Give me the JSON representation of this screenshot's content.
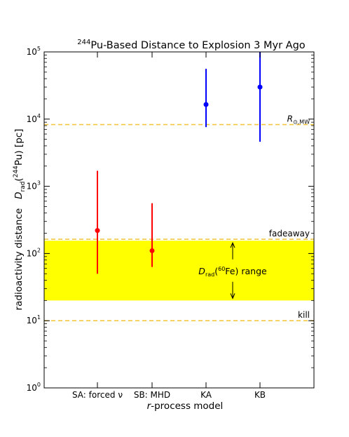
{
  "chart_data": {
    "type": "scatter",
    "title_prefix": "244",
    "title_main": "Pu-Based Distance to Explosion 3 Myr Ago",
    "xlabel_italic": "r",
    "xlabel_rest": "-process model",
    "ylabel_parts": {
      "prefix": "radioactivity distance   ",
      "sym": "D",
      "sub": "rad",
      "open": "(",
      "sup": "244",
      "close": "Pu) [pc]"
    },
    "yscale": "log",
    "ylim": [
      1,
      100000
    ],
    "y_tick_base": "10",
    "y_tick_exponents": [
      "0",
      "1",
      "2",
      "3",
      "4",
      "5"
    ],
    "categories": [
      "SA: forced ν",
      "SB: MHD",
      "KA",
      "KB"
    ],
    "points": [
      {
        "category": "SA: forced ν",
        "y": 220,
        "ymin": 50,
        "ymax": 1700,
        "color": "#ff0000"
      },
      {
        "category": "SB: MHD",
        "y": 110,
        "ymin": 63,
        "ymax": 560,
        "color": "#ff0000"
      },
      {
        "category": "KA",
        "y": 16500,
        "ymin": 7600,
        "ymax": 56000,
        "color": "#0000ff"
      },
      {
        "category": "KB",
        "y": 30000,
        "ymin": 4600,
        "ymax": 100000,
        "color": "#0000ff"
      }
    ],
    "band": {
      "ymin": 20,
      "ymax": 155,
      "color": "#ffff00"
    },
    "reference_lines": [
      {
        "y": 8300,
        "color": "#f5c842",
        "label_main": "R",
        "label_sub": "⊙,MW"
      },
      {
        "y": 163,
        "color": "#f5c842",
        "label": "fadeaway"
      },
      {
        "y": 10,
        "color": "#f5c842",
        "label": "kill"
      }
    ],
    "annotation": {
      "sym": "D",
      "sub": "rad",
      "open": "(",
      "sup": "60",
      "close": "Fe) range",
      "arrow_top": 155,
      "arrow_bottom": 20
    },
    "grid": false,
    "legend": "none"
  }
}
